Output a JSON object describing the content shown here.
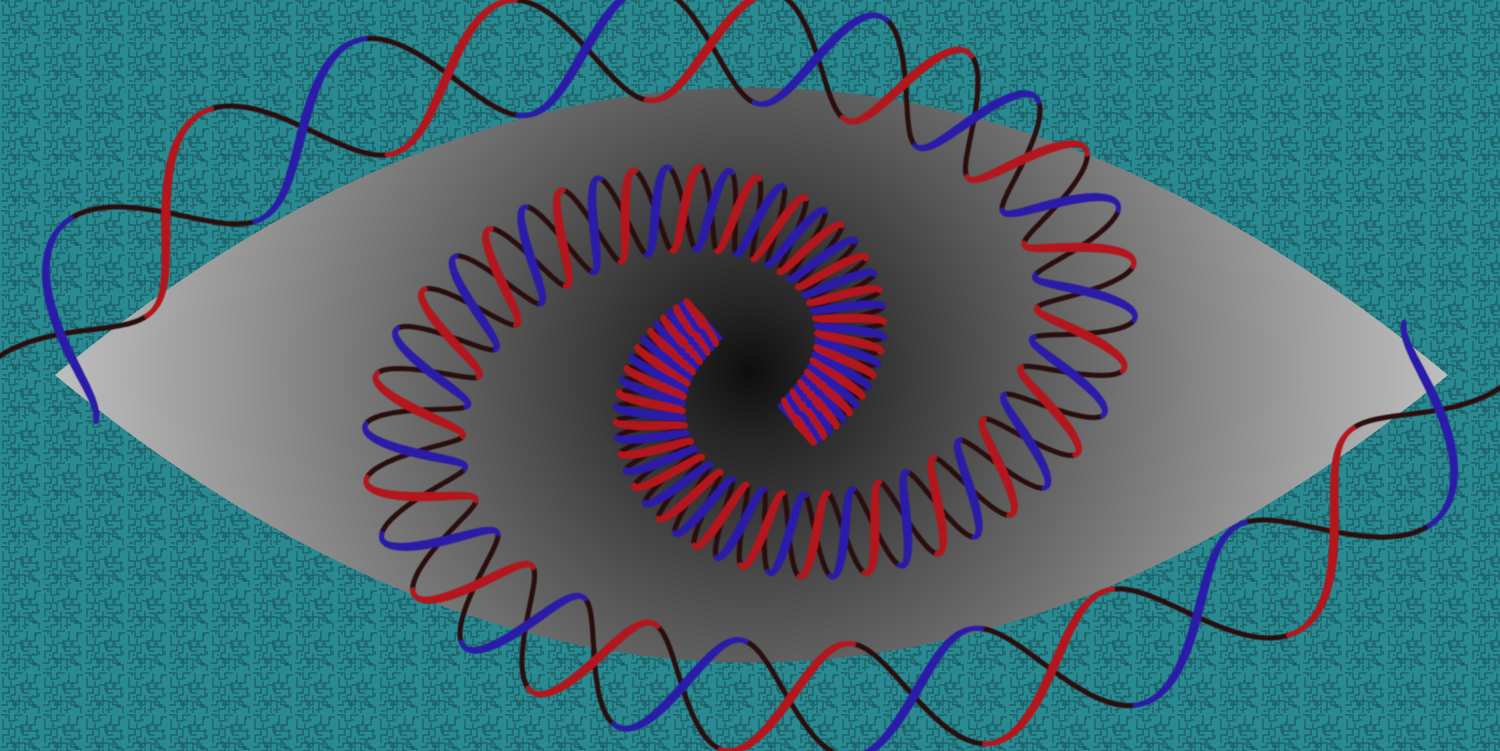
{
  "illustration": {
    "subject": "eye-with-dna-spiral",
    "colors": {
      "background": "#2a8a92",
      "maze_lines": "#1c5f66",
      "eye_outer": "#bdbdbd",
      "eye_mid": "#777777",
      "pupil": "#111111",
      "strand_a": "#2a1aa8",
      "strand_b": "#b3161a",
      "strand_shadow": "#2a0d0d"
    },
    "icons": [
      "maze-pattern",
      "eye-shape",
      "dna-helix-spiral"
    ]
  }
}
